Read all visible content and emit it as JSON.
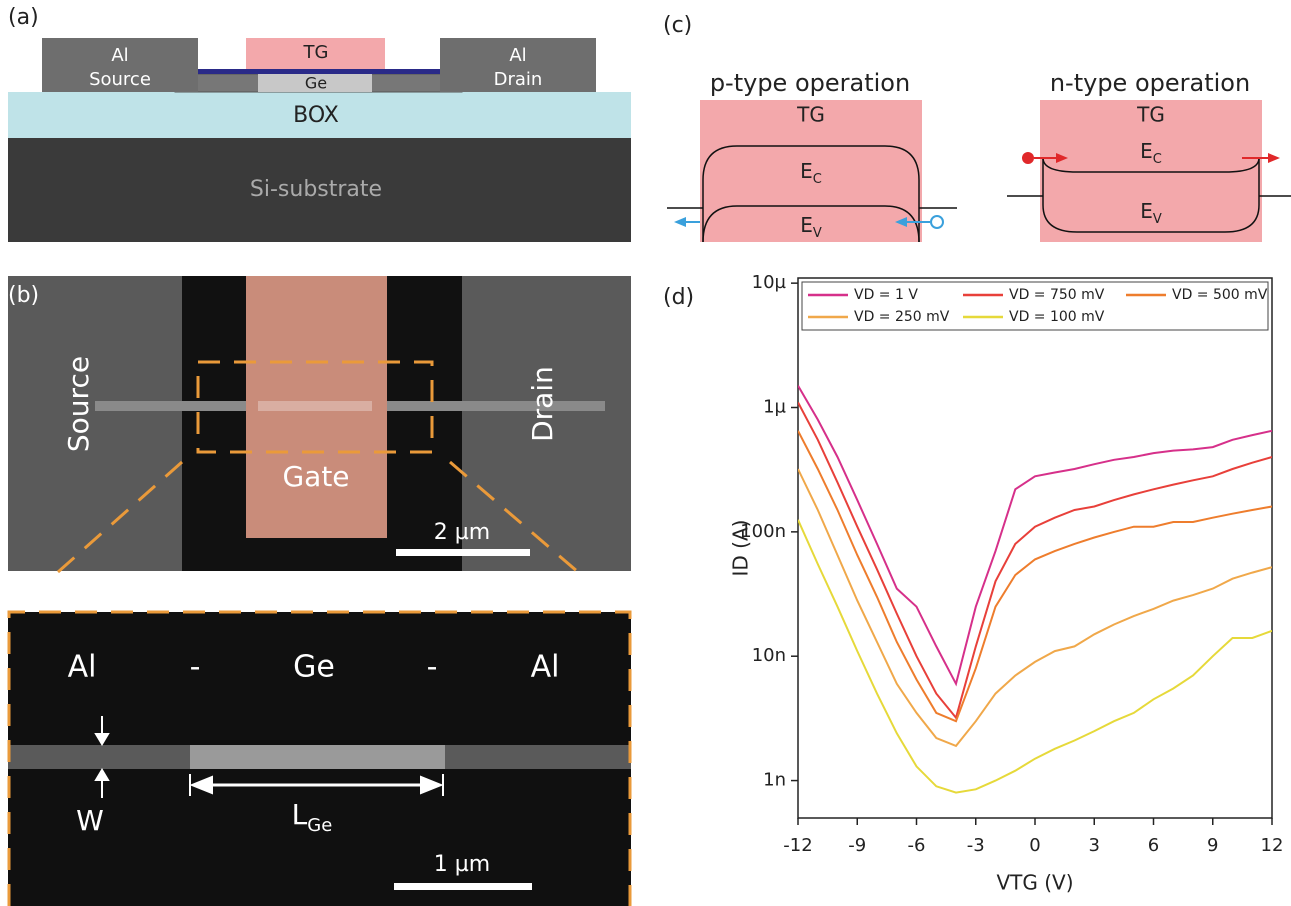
{
  "panel_a": {
    "label": "(a)",
    "source_top": "Al",
    "source_bottom": "Source",
    "gate": "TG",
    "channel": "Ge",
    "drain_top": "Al",
    "drain_bottom": "Drain",
    "box": "BOX",
    "substrate": "Si-substrate"
  },
  "panel_b": {
    "label": "(b)",
    "source": "Source",
    "gate": "Gate",
    "drain": "Drain",
    "scale_top": "2 µm",
    "zoom": {
      "left": "Al",
      "dash1": "-",
      "middle": "Ge",
      "dash2": "-",
      "right": "Al",
      "width": "W",
      "length": {
        "main": "L",
        "sub": "Ge"
      },
      "scale": "1 µm"
    }
  },
  "panel_c": {
    "label": "(c)",
    "p_type": {
      "title": "p-type operation",
      "gate": "TG",
      "ec": {
        "main": "E",
        "sub": "C"
      },
      "ev": {
        "main": "E",
        "sub": "V"
      }
    },
    "n_type": {
      "title": "n-type operation",
      "gate": "TG",
      "ec": {
        "main": "E",
        "sub": "C"
      },
      "ev": {
        "main": "E",
        "sub": "V"
      }
    }
  },
  "panel_d": {
    "label": "(d)"
  },
  "chart_data": {
    "type": "line",
    "x_label": "VTG (V)",
    "y_label": "ID (A)",
    "yscale": "log",
    "legend": "upper left",
    "x": [
      -12,
      -11,
      -10,
      -9,
      -8,
      -7,
      -6,
      -5,
      -4,
      -3,
      -2,
      -1,
      0,
      1,
      2,
      3,
      4,
      5,
      6,
      7,
      8,
      9,
      10,
      11,
      12
    ],
    "xlim": [
      -12,
      12
    ],
    "xticks": [
      -12,
      -9,
      -6,
      -3,
      0,
      3,
      6,
      9,
      12
    ],
    "ylim": [
      5e-10,
      1.1e-05
    ],
    "yticks": [
      {
        "value": 1e-09,
        "label": "1n"
      },
      {
        "value": 1e-08,
        "label": "10n"
      },
      {
        "value": 1e-07,
        "label": "100n"
      },
      {
        "value": 1e-06,
        "label": "1µ"
      },
      {
        "value": 1e-05,
        "label": "10µ"
      }
    ],
    "series": [
      {
        "name": "VD = 1 V",
        "color": "#d6308a",
        "values": [
          1.5e-06,
          8e-07,
          4e-07,
          1.8e-07,
          8e-08,
          3.5e-08,
          2.5e-08,
          1.2e-08,
          6e-09,
          2.5e-08,
          7e-08,
          2.2e-07,
          2.8e-07,
          3e-07,
          3.2e-07,
          3.5e-07,
          3.8e-07,
          4e-07,
          4.3e-07,
          4.5e-07,
          4.6e-07,
          4.8e-07,
          5.5e-07,
          6e-07,
          6.5e-07
        ]
      },
      {
        "name": "VD = 750 mV",
        "color": "#e8403a",
        "values": [
          1.1e-06,
          5.5e-07,
          2.5e-07,
          1.1e-07,
          5e-08,
          2.2e-08,
          1e-08,
          5e-09,
          3.2e-09,
          1.2e-08,
          4e-08,
          8e-08,
          1.1e-07,
          1.3e-07,
          1.5e-07,
          1.6e-07,
          1.8e-07,
          2e-07,
          2.2e-07,
          2.4e-07,
          2.6e-07,
          2.8e-07,
          3.2e-07,
          3.6e-07,
          4e-07
        ]
      },
      {
        "name": "VD = 500 mV",
        "color": "#ee7d2d",
        "values": [
          6.5e-07,
          3.2e-07,
          1.5e-07,
          6.5e-08,
          3e-08,
          1.3e-08,
          6.5e-09,
          3.5e-09,
          3e-09,
          8e-09,
          2.5e-08,
          4.5e-08,
          6e-08,
          7e-08,
          8e-08,
          9e-08,
          1e-07,
          1.1e-07,
          1.1e-07,
          1.2e-07,
          1.2e-07,
          1.3e-07,
          1.4e-07,
          1.5e-07,
          1.6e-07
        ]
      },
      {
        "name": "VD = 250 mV",
        "color": "#f0a84a",
        "values": [
          3.2e-07,
          1.5e-07,
          6.5e-08,
          2.8e-08,
          1.3e-08,
          6e-09,
          3.5e-09,
          2.2e-09,
          1.9e-09,
          3e-09,
          5e-09,
          7e-09,
          9e-09,
          1.1e-08,
          1.2e-08,
          1.5e-08,
          1.8e-08,
          2.1e-08,
          2.4e-08,
          2.8e-08,
          3.1e-08,
          3.5e-08,
          4.2e-08,
          4.7e-08,
          5.2e-08
        ]
      },
      {
        "name": "VD = 100 mV",
        "color": "#e6d93a",
        "values": [
          1.25e-07,
          5.5e-08,
          2.5e-08,
          1.1e-08,
          5e-09,
          2.4e-09,
          1.3e-09,
          9e-10,
          8e-10,
          8.5e-10,
          1e-09,
          1.2e-09,
          1.5e-09,
          1.8e-09,
          2.1e-09,
          2.5e-09,
          3e-09,
          3.5e-09,
          4.5e-09,
          5.5e-09,
          7e-09,
          1e-08,
          1.4e-08,
          1.4e-08,
          1.6e-08
        ]
      }
    ]
  }
}
